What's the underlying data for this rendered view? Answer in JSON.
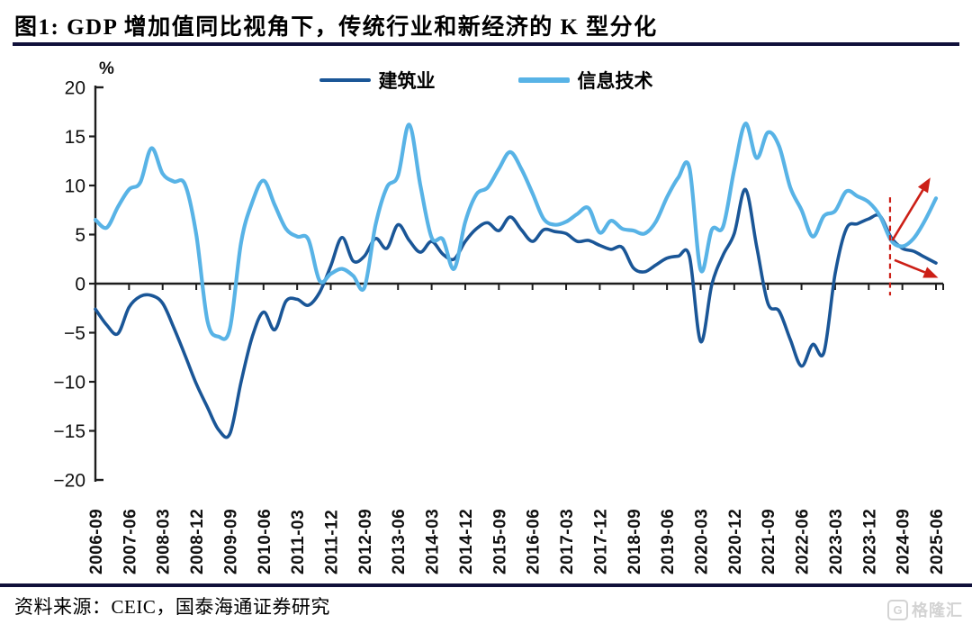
{
  "header": {
    "title": "图1:  GDP 增加值同比视角下，传统行业和新经济的 K 型分化"
  },
  "chart_data": {
    "type": "line",
    "title": "GDP增加值同比视角下，传统行业和新经济的K型分化",
    "unit_label": "%",
    "ylabel": "%",
    "xlabel": "",
    "ylim": [
      -20,
      20
    ],
    "yticks": [
      20,
      15,
      10,
      5,
      0,
      -5,
      -10,
      -15,
      -20
    ],
    "grid": false,
    "legend_position": "top",
    "x_label_every": 3,
    "categories": [
      "2006-09",
      "2006-12",
      "2007-03",
      "2007-06",
      "2007-09",
      "2007-12",
      "2008-03",
      "2008-06",
      "2008-09",
      "2008-12",
      "2009-03",
      "2009-06",
      "2009-09",
      "2009-12",
      "2010-03",
      "2010-06",
      "2010-09",
      "2010-12",
      "2011-03",
      "2011-06",
      "2011-09",
      "2011-12",
      "2012-03",
      "2012-06",
      "2012-09",
      "2012-12",
      "2013-03",
      "2013-06",
      "2013-09",
      "2013-12",
      "2014-03",
      "2014-06",
      "2014-09",
      "2014-12",
      "2015-03",
      "2015-06",
      "2015-09",
      "2015-12",
      "2016-03",
      "2016-06",
      "2016-09",
      "2016-12",
      "2017-03",
      "2017-06",
      "2017-09",
      "2017-12",
      "2018-03",
      "2018-06",
      "2018-09",
      "2018-12",
      "2019-03",
      "2019-06",
      "2019-09",
      "2019-12",
      "2020-03",
      "2020-06",
      "2020-09",
      "2020-12",
      "2021-03",
      "2021-06",
      "2021-09",
      "2021-12",
      "2022-03",
      "2022-06",
      "2022-09",
      "2022-12",
      "2023-03",
      "2023-06",
      "2023-09",
      "2023-12",
      "2024-03",
      "2024-06",
      "2024-09",
      "2024-12",
      "2025-03",
      "2025-06"
    ],
    "series": [
      {
        "name": "建筑业",
        "color": "#1a5697",
        "stroke_width": 3.6,
        "values": [
          -2.6,
          -4.2,
          -5.1,
          -2.4,
          -1.3,
          -1.2,
          -2.0,
          -4.5,
          -7.3,
          -10.2,
          -12.6,
          -14.9,
          -15.3,
          -10.0,
          -5.4,
          -2.9,
          -4.7,
          -1.8,
          -1.6,
          -2.2,
          -0.9,
          1.8,
          4.7,
          2.3,
          2.8,
          4.6,
          3.6,
          6.0,
          4.4,
          3.2,
          4.3,
          3.0,
          2.5,
          4.3,
          5.6,
          6.2,
          5.4,
          6.8,
          5.5,
          4.3,
          5.5,
          5.3,
          5.1,
          4.3,
          4.4,
          3.9,
          3.5,
          3.7,
          1.6,
          1.2,
          1.9,
          2.6,
          2.8,
          2.8,
          -5.9,
          -0.1,
          2.9,
          5.1,
          9.6,
          3.8,
          -2.0,
          -2.8,
          -5.7,
          -8.4,
          -6.2,
          -7.0,
          1.0,
          5.6,
          6.1,
          6.6,
          6.9,
          4.7,
          3.6,
          3.3,
          2.7,
          2.1
        ]
      },
      {
        "name": "信息技术",
        "color": "#58b3e6",
        "stroke_width": 4.2,
        "values": [
          6.5,
          5.7,
          7.8,
          9.6,
          10.3,
          13.8,
          11.2,
          10.4,
          10.1,
          5.0,
          -3.8,
          -5.4,
          -4.6,
          4.2,
          8.3,
          10.5,
          8.0,
          5.6,
          4.8,
          4.5,
          0.3,
          1.0,
          1.5,
          0.8,
          -0.4,
          6.0,
          9.8,
          11.0,
          16.2,
          10.0,
          4.7,
          4.5,
          1.5,
          6.3,
          9.1,
          9.8,
          11.7,
          13.4,
          11.7,
          9.2,
          6.6,
          6.0,
          6.3,
          7.1,
          7.7,
          5.2,
          6.4,
          5.6,
          5.4,
          5.1,
          6.3,
          8.8,
          10.8,
          11.8,
          1.4,
          5.5,
          5.8,
          11.6,
          16.3,
          12.8,
          15.4,
          14.0,
          9.8,
          7.5,
          4.8,
          6.9,
          7.4,
          9.4,
          8.9,
          8.3,
          6.9,
          4.4,
          3.8,
          4.6,
          6.4,
          8.7
        ]
      }
    ],
    "annotations": {
      "color": "#cc1f16",
      "dashed_line": {
        "index": 70.9,
        "from_value": 8.8,
        "to_value": -1.2
      },
      "arrow_up": {
        "from": {
          "index": 71.1,
          "value": 4.4
        },
        "to": {
          "index": 74.5,
          "value": 10.8
        }
      },
      "arrow_down": {
        "from": {
          "index": 71.3,
          "value": 2.4
        },
        "to": {
          "index": 75.2,
          "value": 0.6
        }
      }
    }
  },
  "footer": {
    "source": "资料来源：CEIC，国泰海通证券研究"
  },
  "watermark": {
    "icon": "G",
    "text": "格隆汇"
  }
}
